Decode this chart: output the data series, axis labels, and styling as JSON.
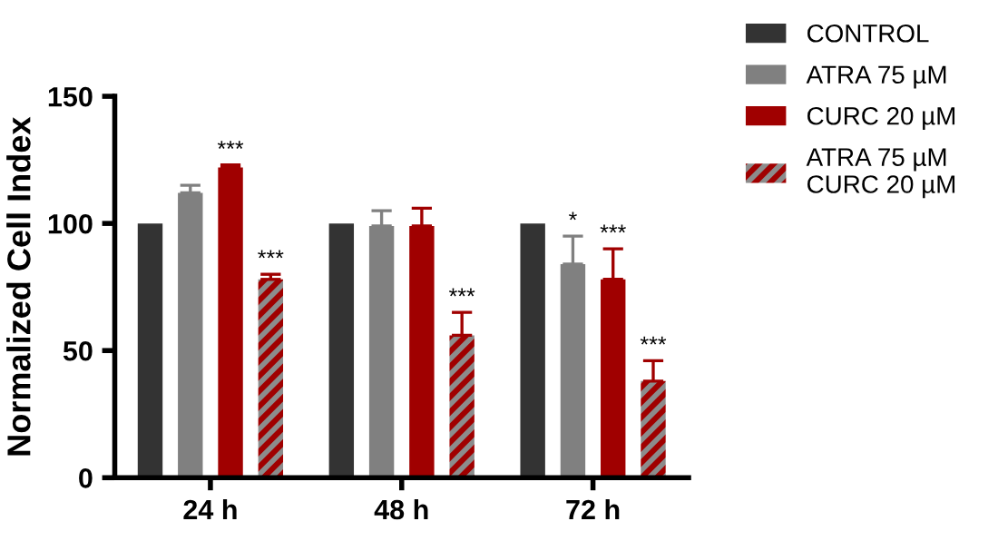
{
  "chart_data": {
    "type": "bar",
    "ylabel": "Normalized Cell Index",
    "categories": [
      "24 h",
      "48 h",
      "72 h"
    ],
    "series": [
      {
        "name": "CONTROL",
        "color": "#333333",
        "values": [
          100,
          100,
          100
        ]
      },
      {
        "name": "ATRA 75 µM",
        "color": "#808080",
        "values": [
          112,
          99,
          84
        ],
        "errors": [
          [
            112,
            115
          ],
          [
            99,
            105
          ],
          [
            84,
            95
          ]
        ],
        "value_labels": [
          null,
          null,
          "*"
        ]
      },
      {
        "name": "CURC 20 µM",
        "color": "#a00000",
        "values": [
          122,
          99,
          78
        ],
        "errors": [
          [
            122,
            123
          ],
          [
            99,
            106
          ],
          [
            78,
            90
          ]
        ],
        "value_labels": [
          "***",
          null,
          "***"
        ]
      },
      {
        "name": "ATRA 75 µM\nCURC 20 µM",
        "color": "#8c8c8c",
        "values": [
          78,
          56,
          38
        ],
        "errors": [
          [
            78,
            80
          ],
          [
            56,
            65
          ],
          [
            38,
            46
          ]
        ],
        "value_labels": [
          "***",
          "***",
          "***"
        ]
      }
    ],
    "ylim": [
      0,
      150
    ],
    "yticks": [
      0,
      50,
      100,
      150
    ],
    "grid": false,
    "legend": "top right"
  }
}
